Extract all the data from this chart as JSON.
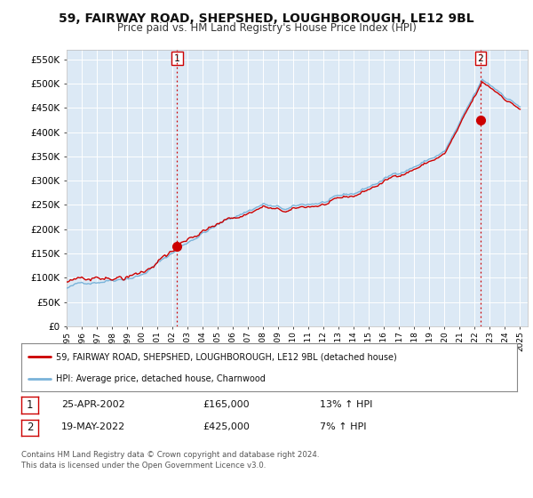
{
  "title": "59, FAIRWAY ROAD, SHEPSHED, LOUGHBOROUGH, LE12 9BL",
  "subtitle": "Price paid vs. HM Land Registry's House Price Index (HPI)",
  "title_fontsize": 10,
  "subtitle_fontsize": 8.5,
  "bg_color": "#ffffff",
  "plot_bg_color": "#dce9f5",
  "grid_color": "#ffffff",
  "ylim": [
    0,
    570000
  ],
  "yticks": [
    0,
    50000,
    100000,
    150000,
    200000,
    250000,
    300000,
    350000,
    400000,
    450000,
    500000,
    550000
  ],
  "ytick_labels": [
    "£0",
    "£50K",
    "£100K",
    "£150K",
    "£200K",
    "£250K",
    "£300K",
    "£350K",
    "£400K",
    "£450K",
    "£500K",
    "£550K"
  ],
  "hpi_color": "#7ab3d9",
  "price_color": "#cc0000",
  "marker_color": "#cc0000",
  "vline_color": "#cc0000",
  "transaction1_x": 2002.31,
  "transaction1_y": 165000,
  "transaction2_x": 2022.38,
  "transaction2_y": 425000,
  "legend_line1": "59, FAIRWAY ROAD, SHEPSHED, LOUGHBOROUGH, LE12 9BL (detached house)",
  "legend_line2": "HPI: Average price, detached house, Charnwood",
  "table_row1": [
    "1",
    "25-APR-2002",
    "£165,000",
    "13% ↑ HPI"
  ],
  "table_row2": [
    "2",
    "19-MAY-2022",
    "£425,000",
    "7% ↑ HPI"
  ],
  "footnote": "Contains HM Land Registry data © Crown copyright and database right 2024.\nThis data is licensed under the Open Government Licence v3.0.",
  "xmin": 1995,
  "xmax": 2025.5
}
